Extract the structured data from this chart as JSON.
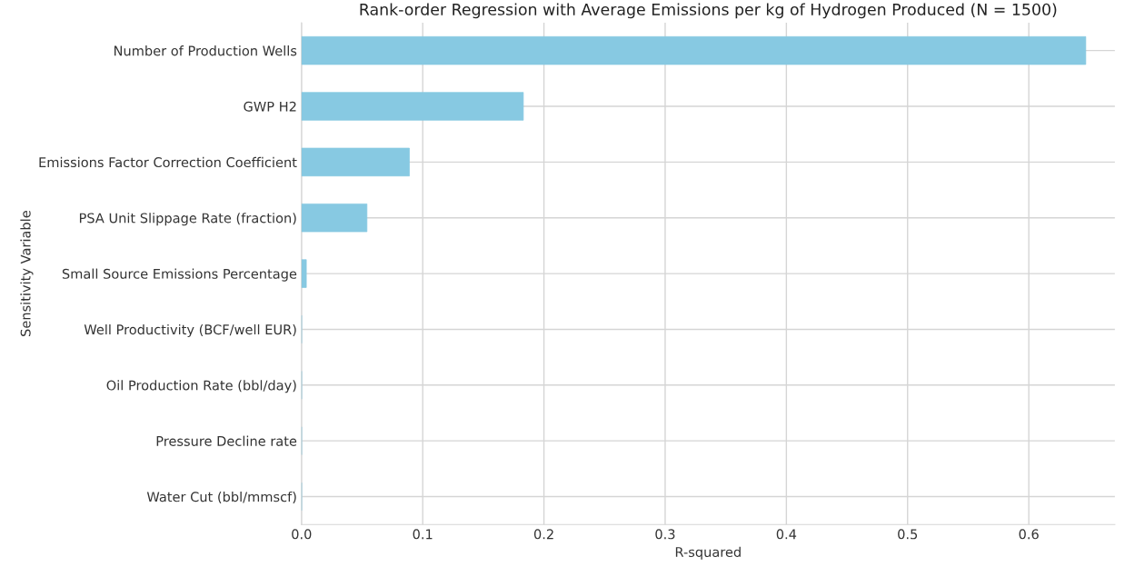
{
  "chart_data": {
    "type": "bar",
    "orientation": "horizontal",
    "title": "Rank-order Regression with Average Emissions per kg of Hydrogen Produced (N = 1500)",
    "xlabel": "R-squared",
    "ylabel": "Sensitivity Variable",
    "categories": [
      "Number of Production Wells",
      "GWP H2",
      "Emissions Factor Correction Coefficient",
      "PSA Unit Slippage Rate (fraction)",
      "Small Source Emissions Percentage",
      "Well Productivity (BCF/well EUR)",
      "Oil Production Rate (bbl/day)",
      "Pressure Decline rate",
      "Water Cut (bbl/mmscf)"
    ],
    "values": [
      0.647,
      0.183,
      0.089,
      0.054,
      0.004,
      0,
      0,
      0,
      0
    ],
    "color": "#87c9e2",
    "xlim": [
      0,
      0.671
    ],
    "xticks": [
      {
        "value": 0,
        "label": "0.0"
      },
      0.1,
      0.2,
      0.3,
      0.4,
      0.5,
      0.6
    ],
    "grid": true
  }
}
